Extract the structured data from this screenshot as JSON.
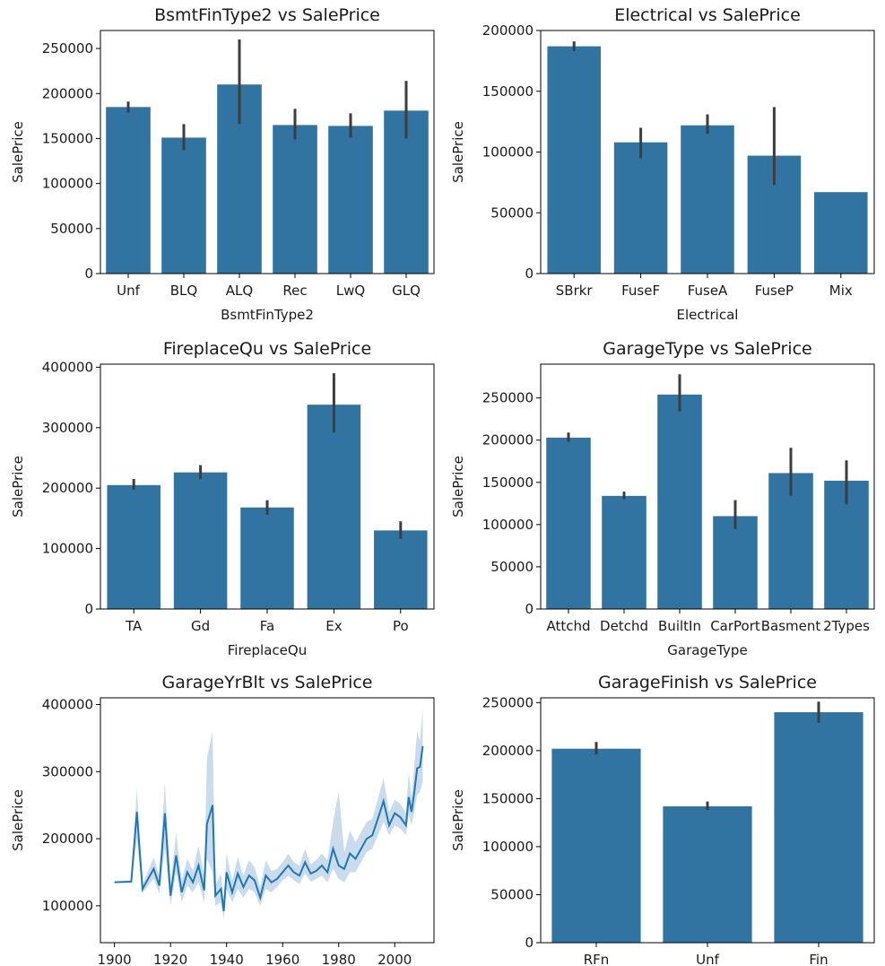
{
  "colors": {
    "bar": "#3274a1",
    "error": "#3d3d3d",
    "line": "#1f77b4",
    "band": "#b3cde3",
    "axis": "#000000",
    "background": "#ffffff"
  },
  "chart_data": [
    {
      "type": "bar",
      "title": "BsmtFinType2 vs SalePrice",
      "xlabel": "BsmtFinType2",
      "ylabel": "SalePrice",
      "categories": [
        "Unf",
        "BLQ",
        "ALQ",
        "Rec",
        "LwQ",
        "GLQ"
      ],
      "values": [
        185000,
        151000,
        210000,
        165000,
        164000,
        181000
      ],
      "error_low": [
        179000,
        137000,
        166000,
        149000,
        151000,
        150000
      ],
      "error_high": [
        191000,
        166000,
        260000,
        183000,
        178000,
        214000
      ],
      "ylim": [
        0,
        270000
      ],
      "yticks": [
        0,
        50000,
        100000,
        150000,
        200000,
        250000
      ],
      "grid": false
    },
    {
      "type": "bar",
      "title": "Electrical vs SalePrice",
      "xlabel": "Electrical",
      "ylabel": "SalePrice",
      "categories": [
        "SBrkr",
        "FuseF",
        "FuseA",
        "FuseP",
        "Mix"
      ],
      "values": [
        187000,
        108000,
        122000,
        97000,
        67000
      ],
      "error_low": [
        183000,
        95000,
        115000,
        73000,
        null
      ],
      "error_high": [
        191000,
        120000,
        131000,
        137000,
        null
      ],
      "ylim": [
        0,
        200000
      ],
      "yticks": [
        0,
        50000,
        100000,
        150000,
        200000
      ],
      "grid": false
    },
    {
      "type": "bar",
      "title": "FireplaceQu vs SalePrice",
      "xlabel": "FireplaceQu",
      "ylabel": "SalePrice",
      "categories": [
        "TA",
        "Gd",
        "Fa",
        "Ex",
        "Po"
      ],
      "values": [
        205000,
        226000,
        168000,
        338000,
        130000
      ],
      "error_low": [
        197000,
        215000,
        156000,
        292000,
        116000
      ],
      "error_high": [
        215000,
        238000,
        180000,
        390000,
        145000
      ],
      "ylim": [
        0,
        405000
      ],
      "yticks": [
        0,
        100000,
        200000,
        300000,
        400000
      ],
      "grid": false
    },
    {
      "type": "bar",
      "title": "GarageType vs SalePrice",
      "xlabel": "GarageType",
      "ylabel": "SalePrice",
      "categories": [
        "Attchd",
        "Detchd",
        "BuiltIn",
        "CarPort",
        "Basment",
        "2Types"
      ],
      "values": [
        203000,
        134000,
        254000,
        110000,
        161000,
        152000
      ],
      "error_low": [
        198000,
        130000,
        234000,
        95000,
        134000,
        124000
      ],
      "error_high": [
        209000,
        139000,
        278000,
        129000,
        191000,
        176000
      ],
      "ylim": [
        0,
        290000
      ],
      "yticks": [
        0,
        50000,
        100000,
        150000,
        200000,
        250000
      ],
      "grid": false
    },
    {
      "type": "line",
      "title": "GarageYrBlt vs SalePrice",
      "xlabel": "",
      "ylabel": "SalePrice",
      "x": [
        1900,
        1906,
        1908,
        1910,
        1912,
        1914,
        1916,
        1918,
        1920,
        1922,
        1924,
        1926,
        1928,
        1930,
        1932,
        1933,
        1935,
        1936,
        1938,
        1939,
        1940,
        1942,
        1944,
        1946,
        1948,
        1950,
        1952,
        1954,
        1956,
        1958,
        1960,
        1962,
        1964,
        1966,
        1968,
        1970,
        1972,
        1974,
        1976,
        1978,
        1980,
        1982,
        1984,
        1986,
        1988,
        1990,
        1992,
        1994,
        1996,
        1998,
        2000,
        2002,
        2004,
        2005,
        2006,
        2007,
        2008,
        2009,
        2010
      ],
      "values": [
        135000,
        136000,
        240000,
        125000,
        140000,
        155000,
        130000,
        238000,
        115000,
        175000,
        120000,
        150000,
        135000,
        160000,
        123000,
        222000,
        250000,
        115000,
        125000,
        92000,
        150000,
        120000,
        148000,
        128000,
        145000,
        138000,
        112000,
        145000,
        135000,
        140000,
        150000,
        160000,
        150000,
        145000,
        165000,
        148000,
        152000,
        160000,
        150000,
        185000,
        160000,
        155000,
        178000,
        170000,
        185000,
        200000,
        205000,
        230000,
        256000,
        220000,
        238000,
        232000,
        220000,
        262000,
        240000,
        270000,
        305000,
        307000,
        338000
      ],
      "lower": [
        134000,
        134000,
        200000,
        118000,
        130000,
        140000,
        118000,
        185000,
        100000,
        150000,
        105000,
        130000,
        120000,
        135000,
        105000,
        170000,
        150000,
        100000,
        105000,
        80000,
        125000,
        105000,
        125000,
        112000,
        125000,
        120000,
        100000,
        125000,
        120000,
        128000,
        138000,
        145000,
        138000,
        132000,
        148000,
        136000,
        140000,
        145000,
        135000,
        155000,
        140000,
        135000,
        150000,
        150000,
        165000,
        180000,
        185000,
        205000,
        225000,
        205000,
        220000,
        215000,
        205000,
        235000,
        220000,
        240000,
        265000,
        270000,
        285000
      ],
      "upper": [
        136000,
        138000,
        275000,
        132000,
        152000,
        172000,
        145000,
        285000,
        130000,
        210000,
        138000,
        170000,
        152000,
        190000,
        145000,
        320000,
        360000,
        130000,
        148000,
        108000,
        178000,
        138000,
        172000,
        145000,
        168000,
        158000,
        128000,
        168000,
        152000,
        155000,
        165000,
        178000,
        165000,
        160000,
        185000,
        162000,
        168000,
        178000,
        168000,
        225000,
        270000,
        180000,
        212000,
        195000,
        210000,
        225000,
        230000,
        260000,
        290000,
        240000,
        258000,
        252000,
        238000,
        300000,
        262000,
        310000,
        360000,
        345000,
        395000
      ],
      "xlim": [
        1895,
        2014
      ],
      "ylim": [
        45000,
        410000
      ],
      "xticks": [
        1900,
        1920,
        1940,
        1960,
        1980,
        2000
      ],
      "yticks": [
        100000,
        200000,
        300000,
        400000
      ],
      "grid": false
    },
    {
      "type": "bar",
      "title": "GarageFinish vs SalePrice",
      "xlabel": "",
      "ylabel": "SalePrice",
      "categories": [
        "RFn",
        "Unf",
        "Fin"
      ],
      "values": [
        202000,
        142000,
        240000
      ],
      "error_low": [
        196000,
        138000,
        229000
      ],
      "error_high": [
        209000,
        147000,
        251000
      ],
      "ylim": [
        0,
        255000
      ],
      "yticks": [
        0,
        50000,
        100000,
        150000,
        200000,
        250000
      ],
      "grid": false
    }
  ]
}
